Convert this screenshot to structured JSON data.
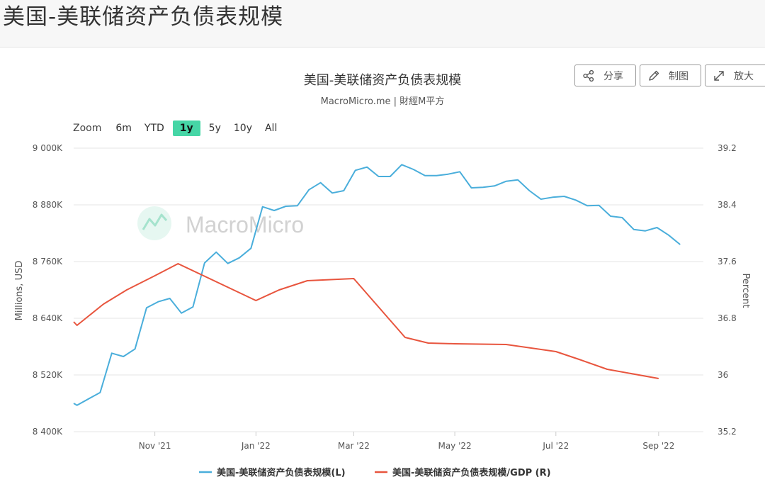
{
  "page": {
    "title": "美国-美联储资产负债表规模"
  },
  "toolbar": {
    "share_label": "分享",
    "draw_label": "制图",
    "zoom_label": "放大"
  },
  "icons": {
    "share": "share-icon",
    "draw": "pencil-icon",
    "expand": "expand-icon"
  },
  "zoom": {
    "label": "Zoom",
    "options": [
      "6m",
      "YTD",
      "1y",
      "5y",
      "10y",
      "All"
    ],
    "active": "1y"
  },
  "watermark": {
    "text": "MacroMicro"
  },
  "colors": {
    "left_series": "#4aaedb",
    "right_series": "#e8553e",
    "grid": "#e6e6e6",
    "zoom_active": "#46d6a6"
  },
  "chart_data": {
    "type": "line",
    "title": "美国-美联储资产负债表规模",
    "subtitle": "MacroMicro.me | 財經M平方",
    "x_tick_labels": [
      "Nov '21",
      "Jan '22",
      "Mar '22",
      "May '22",
      "Jul '22",
      "Sep '22"
    ],
    "x_range": [
      "2021-09-13",
      "2022-09-28"
    ],
    "y_left": {
      "label": "Millions, USD",
      "range": [
        8400000,
        9000000
      ],
      "ticks": [
        8400000,
        8520000,
        8640000,
        8760000,
        8880000,
        9000000
      ],
      "tick_labels": [
        "8 400K",
        "8 520K",
        "8 640K",
        "8 760K",
        "8 880K",
        "9 000K"
      ]
    },
    "y_right": {
      "label": "Percent",
      "range": [
        35.2,
        39.2
      ],
      "ticks": [
        35.2,
        36,
        36.8,
        37.6,
        38.4,
        39.2
      ],
      "tick_labels": [
        "35.2",
        "36",
        "36.8",
        "37.6",
        "38.4",
        "39.2"
      ]
    },
    "legend_position": "bottom-center",
    "grid": true,
    "series": [
      {
        "name": "美国-美联储资产负债表规模(L)",
        "axis": "left",
        "color": "#4aaedb",
        "points": [
          [
            "2021-09-13",
            8460000
          ],
          [
            "2021-09-15",
            8456000
          ],
          [
            "2021-09-29",
            8483000
          ],
          [
            "2021-10-06",
            8566000
          ],
          [
            "2021-10-13",
            8559000
          ],
          [
            "2021-10-20",
            8575000
          ],
          [
            "2021-10-27",
            8662000
          ],
          [
            "2021-11-03",
            8675000
          ],
          [
            "2021-11-10",
            8682000
          ],
          [
            "2021-11-17",
            8651000
          ],
          [
            "2021-11-24",
            8664000
          ],
          [
            "2021-12-01",
            8757000
          ],
          [
            "2021-12-08",
            8780000
          ],
          [
            "2021-12-15",
            8756000
          ],
          [
            "2021-12-22",
            8768000
          ],
          [
            "2021-12-29",
            8788000
          ],
          [
            "2022-01-05",
            8876000
          ],
          [
            "2022-01-12",
            8868000
          ],
          [
            "2022-01-19",
            8877000
          ],
          [
            "2022-01-26",
            8878000
          ],
          [
            "2022-02-02",
            8912000
          ],
          [
            "2022-02-09",
            8927000
          ],
          [
            "2022-02-16",
            8905000
          ],
          [
            "2022-02-23",
            8910000
          ],
          [
            "2022-03-02",
            8953000
          ],
          [
            "2022-03-09",
            8960000
          ],
          [
            "2022-03-16",
            8940000
          ],
          [
            "2022-03-23",
            8940000
          ],
          [
            "2022-03-30",
            8965000
          ],
          [
            "2022-04-06",
            8955000
          ],
          [
            "2022-04-13",
            8942000
          ],
          [
            "2022-04-20",
            8942000
          ],
          [
            "2022-04-27",
            8945000
          ],
          [
            "2022-05-04",
            8950000
          ],
          [
            "2022-05-11",
            8916000
          ],
          [
            "2022-05-18",
            8917000
          ],
          [
            "2022-05-25",
            8920000
          ],
          [
            "2022-06-01",
            8930000
          ],
          [
            "2022-06-08",
            8933000
          ],
          [
            "2022-06-15",
            8910000
          ],
          [
            "2022-06-22",
            8892000
          ],
          [
            "2022-06-29",
            8896000
          ],
          [
            "2022-07-06",
            8898000
          ],
          [
            "2022-07-13",
            8890000
          ],
          [
            "2022-07-20",
            8878000
          ],
          [
            "2022-07-27",
            8879000
          ],
          [
            "2022-08-03",
            8856000
          ],
          [
            "2022-08-10",
            8853000
          ],
          [
            "2022-08-17",
            8828000
          ],
          [
            "2022-08-24",
            8825000
          ],
          [
            "2022-08-31",
            8832000
          ],
          [
            "2022-09-07",
            8816000
          ],
          [
            "2022-09-14",
            8796000
          ]
        ]
      },
      {
        "name": "美国-美联储资产负债表规模/GDP (R)",
        "axis": "right",
        "color": "#e8553e",
        "points": [
          [
            "2021-09-13",
            36.75
          ],
          [
            "2021-09-15",
            36.7
          ],
          [
            "2021-10-01",
            37.0
          ],
          [
            "2021-10-15",
            37.2
          ],
          [
            "2021-11-01",
            37.4
          ],
          [
            "2021-11-15",
            37.57
          ],
          [
            "2022-01-01",
            37.05
          ],
          [
            "2022-01-15",
            37.2
          ],
          [
            "2022-02-01",
            37.33
          ],
          [
            "2022-03-01",
            37.36
          ],
          [
            "2022-04-01",
            36.53
          ],
          [
            "2022-04-15",
            36.45
          ],
          [
            "2022-05-01",
            36.44
          ],
          [
            "2022-06-01",
            36.43
          ],
          [
            "2022-07-01",
            36.33
          ],
          [
            "2022-07-15",
            36.22
          ],
          [
            "2022-08-01",
            36.08
          ],
          [
            "2022-09-01",
            35.95
          ]
        ]
      }
    ]
  }
}
